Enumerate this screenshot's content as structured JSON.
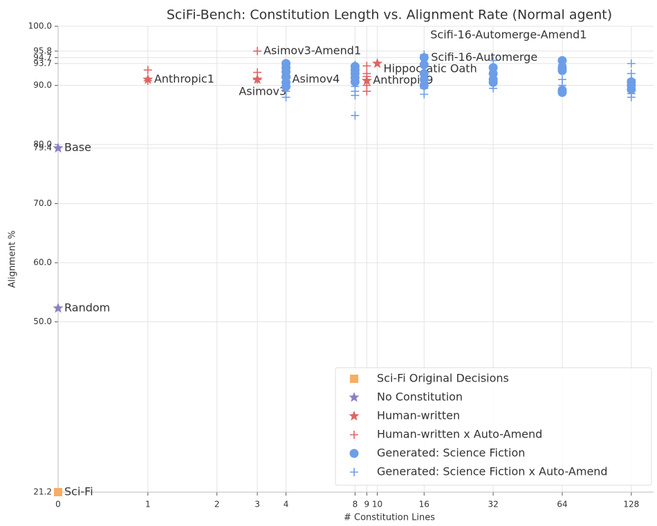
{
  "chart_data": {
    "type": "scatter",
    "title": "SciFi-Bench: Constitution Length vs. Alignment Rate (Normal agent)",
    "xlabel": "# Constitution Lines",
    "ylabel": "Alignment %",
    "xscale": "symlog",
    "xlim": [
      0,
      160
    ],
    "xticks": [
      0,
      1,
      2,
      3,
      4,
      8,
      9,
      10,
      16,
      32,
      64,
      128
    ],
    "ylim": [
      21.2,
      100
    ],
    "yticks": [
      {
        "value": 21.2,
        "label": "21.2"
      },
      {
        "value": 50,
        "label": "50.0"
      },
      {
        "value": 60,
        "label": "60.0"
      },
      {
        "value": 70,
        "label": "70.0"
      },
      {
        "value": 79.4,
        "label": "79.4"
      },
      {
        "value": 80,
        "label": "80.0"
      },
      {
        "value": 90,
        "label": "90.0"
      },
      {
        "value": 93.7,
        "label": "93.7"
      },
      {
        "value": 94.7,
        "label": "94.7"
      },
      {
        "value": 95.8,
        "label": "95.8"
      },
      {
        "value": 100,
        "label": "100.0"
      }
    ],
    "grid": true,
    "legend": "lower right",
    "series": [
      {
        "name": "Sci-Fi Original Decisions",
        "marker": "square",
        "color": "#f7ad63",
        "x": [
          0
        ],
        "y": [
          21.2
        ],
        "labels": [
          "Sci-Fi"
        ]
      },
      {
        "name": "No Constitution",
        "marker": "star",
        "color": "#8b7fc4",
        "x": [
          0,
          0
        ],
        "y": [
          79.4,
          52.3
        ],
        "labels": [
          "Base",
          "Random"
        ]
      },
      {
        "name": "Human-written",
        "marker": "star",
        "color": "#df6464",
        "x": [
          1,
          3,
          4,
          9,
          10
        ],
        "y": [
          91.0,
          91.0,
          91.0,
          90.8,
          93.7
        ],
        "labels": [
          "Anthropic1",
          "Asimov3",
          "Asimov4",
          "Anthropic9",
          "Hippocratic Oath"
        ]
      },
      {
        "name": "Human-written x Auto-Amend",
        "marker": "plus",
        "color": "#df6464",
        "x": [
          1,
          1,
          3,
          3,
          3,
          9,
          9,
          9,
          9,
          9
        ],
        "y": [
          92.6,
          90.8,
          92.2,
          91.0,
          95.8,
          93.3,
          92.0,
          90.0,
          89.0,
          91.5
        ],
        "labels": [
          null,
          null,
          null,
          null,
          "Asimov3-Amend1",
          null,
          null,
          null,
          null,
          null
        ]
      },
      {
        "name": "Generated: Science Fiction",
        "marker": "circle",
        "color": "#6d9de8",
        "x": [
          4,
          4,
          4,
          4,
          4,
          4,
          8,
          8,
          8,
          8,
          8,
          16,
          16,
          16,
          16,
          16,
          32,
          32,
          32,
          32,
          64,
          64,
          64,
          64,
          64,
          128,
          128,
          128
        ],
        "y": [
          93.7,
          93.0,
          92.3,
          91.5,
          90.5,
          89.8,
          93.2,
          92.6,
          92.0,
          91.3,
          90.6,
          94.7,
          93.5,
          92.0,
          91.0,
          90.0,
          93.0,
          92.0,
          91.0,
          90.5,
          94.2,
          93.0,
          92.5,
          89.2,
          88.8,
          90.6,
          90.0,
          89.3
        ],
        "labels": [
          null,
          null,
          null,
          null,
          null,
          null,
          null,
          null,
          null,
          null,
          null,
          "Scifi-16-Automerge",
          null,
          null,
          null,
          null,
          null,
          null,
          null,
          null,
          null,
          null,
          null,
          null,
          null,
          null,
          null,
          null
        ]
      },
      {
        "name": "Generated: Science Fiction x Auto-Amend",
        "marker": "plus",
        "color": "#6d9de8",
        "x": [
          4,
          4,
          4,
          8,
          8,
          8,
          8,
          8,
          16,
          16,
          16,
          16,
          16,
          32,
          32,
          32,
          64,
          64,
          64,
          64,
          128,
          128,
          128,
          128,
          128
        ],
        "y": [
          89.0,
          88.0,
          90.0,
          88.3,
          89.0,
          89.8,
          84.9,
          93.5,
          88.5,
          89.5,
          90.2,
          93.7,
          95.2,
          89.5,
          90.3,
          94.2,
          89.0,
          90.0,
          91.0,
          93.5,
          88.0,
          88.6,
          91.0,
          92.0,
          93.7
        ],
        "labels": [
          null,
          null,
          null,
          null,
          null,
          null,
          null,
          null,
          null,
          null,
          null,
          null,
          "Scifi-16-Automerge-Amend1",
          null,
          null,
          null,
          null,
          null,
          null,
          null,
          null,
          null,
          null,
          null,
          null
        ]
      }
    ]
  }
}
